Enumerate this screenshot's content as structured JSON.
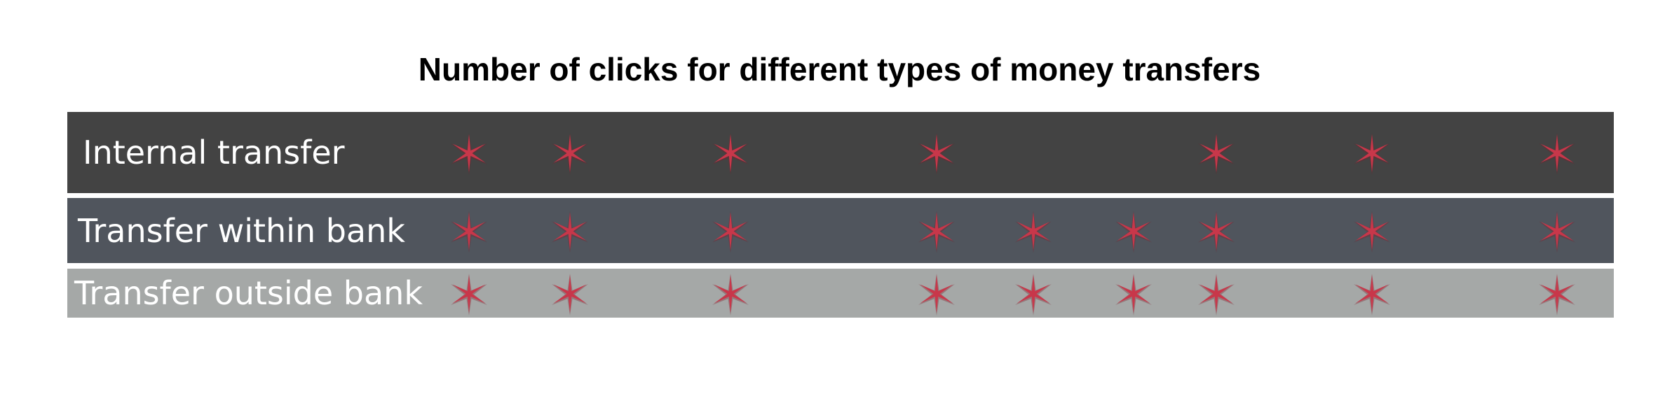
{
  "chart_data": {
    "type": "table",
    "title": "Number of clicks for different types of money transfers",
    "colors": {
      "marker": "#c8374a",
      "marker_glow": "#7a1f2c"
    },
    "rows": [
      {
        "label": "Internal transfer",
        "background": "#434343",
        "clicks": 7,
        "marker_slots": [
          1,
          2,
          3,
          4,
          7,
          8,
          9
        ]
      },
      {
        "label": "Transfer within bank",
        "background": "#50555d",
        "clicks": 9,
        "marker_slots": [
          1,
          2,
          3,
          4,
          5,
          6,
          7,
          8,
          9
        ]
      },
      {
        "label": "Transfer outside bank",
        "background": "#a5a8a7",
        "clicks": 9,
        "marker_slots": [
          1,
          2,
          3,
          4,
          5,
          6,
          7,
          8,
          9
        ]
      }
    ]
  }
}
